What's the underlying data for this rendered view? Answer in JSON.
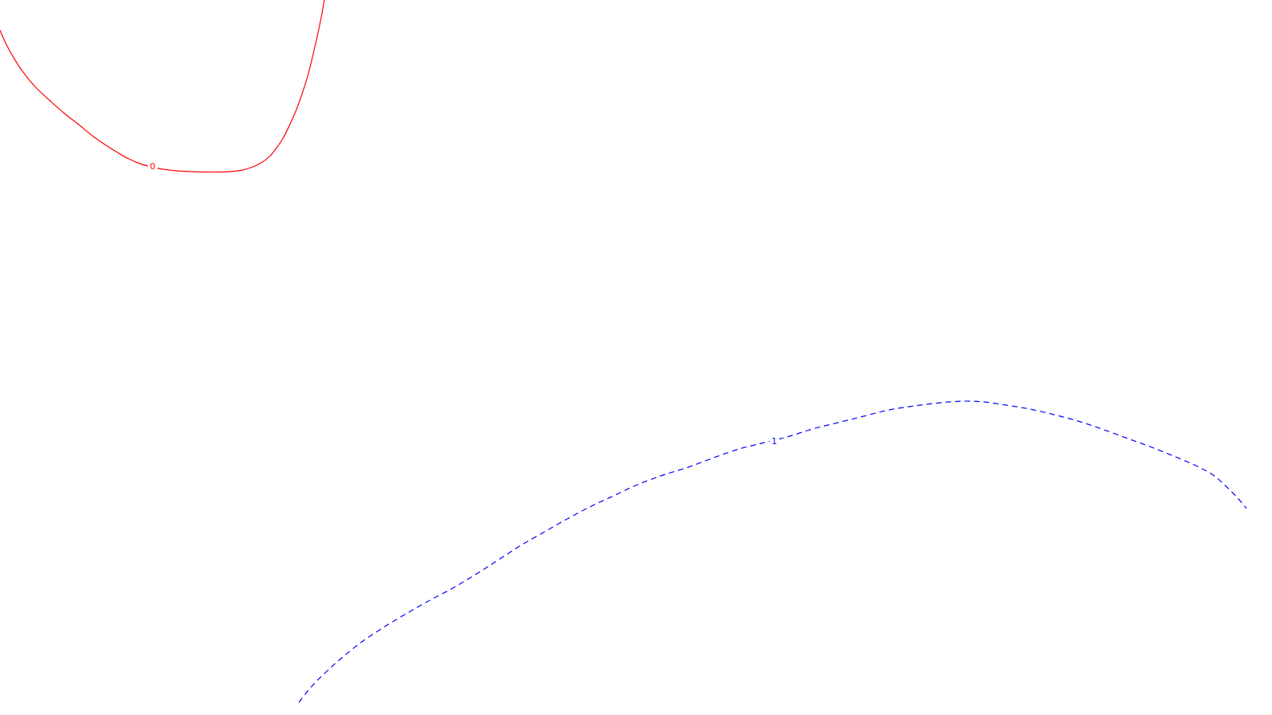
{
  "chart_data": {
    "type": "contour",
    "title": "",
    "xlabel": "",
    "ylabel": "",
    "grid": false,
    "legend": "none",
    "contours": [
      {
        "level": "0",
        "color": "#ff0000",
        "style": "solid",
        "points": [
          [
            0,
            38
          ],
          [
            8,
            56
          ],
          [
            18,
            74
          ],
          [
            30,
            92
          ],
          [
            45,
            110
          ],
          [
            62,
            126
          ],
          [
            80,
            142
          ],
          [
            98,
            156
          ],
          [
            115,
            170
          ],
          [
            132,
            182
          ],
          [
            148,
            192
          ],
          [
            162,
            200
          ],
          [
            176,
            206
          ],
          [
            190,
            210
          ],
          [
            205,
            213
          ],
          [
            222,
            215
          ],
          [
            240,
            216
          ],
          [
            258,
            216.5
          ],
          [
            275,
            216.5
          ],
          [
            290,
            216
          ],
          [
            305,
            214
          ],
          [
            318,
            210
          ],
          [
            330,
            204
          ],
          [
            340,
            196
          ],
          [
            348,
            186
          ],
          [
            356,
            174
          ],
          [
            364,
            158
          ],
          [
            372,
            140
          ],
          [
            380,
            118
          ],
          [
            387,
            96
          ],
          [
            393,
            72
          ],
          [
            399,
            46
          ],
          [
            404,
            22
          ],
          [
            408,
            0
          ]
        ],
        "label_at": [
          192,
          210
        ]
      },
      {
        "level": "1",
        "color": "#0000ff",
        "style": "dashed",
        "points": [
          [
            376,
            884
          ],
          [
            392,
            864
          ],
          [
            410,
            846
          ],
          [
            430,
            828
          ],
          [
            455,
            808
          ],
          [
            482,
            790
          ],
          [
            510,
            773
          ],
          [
            540,
            756
          ],
          [
            570,
            740
          ],
          [
            600,
            722
          ],
          [
            628,
            704
          ],
          [
            656,
            686
          ],
          [
            684,
            670
          ],
          [
            712,
            654
          ],
          [
            742,
            638
          ],
          [
            772,
            624
          ],
          [
            802,
            610
          ],
          [
            834,
            598
          ],
          [
            866,
            588
          ],
          [
            898,
            576
          ],
          [
            930,
            565
          ],
          [
            958,
            558
          ],
          [
            990,
            550
          ],
          [
            1022,
            540
          ],
          [
            1054,
            532
          ],
          [
            1086,
            524
          ],
          [
            1118,
            516
          ],
          [
            1150,
            511
          ],
          [
            1182,
            507
          ],
          [
            1212,
            505
          ],
          [
            1238,
            506
          ],
          [
            1266,
            510
          ],
          [
            1296,
            515
          ],
          [
            1326,
            522
          ],
          [
            1356,
            530
          ],
          [
            1386,
            540
          ],
          [
            1416,
            551
          ],
          [
            1446,
            562
          ],
          [
            1476,
            574
          ],
          [
            1504,
            586
          ],
          [
            1526,
            598
          ],
          [
            1542,
            612
          ],
          [
            1556,
            626
          ],
          [
            1568,
            640
          ]
        ],
        "label_at": [
          974,
          556
        ]
      }
    ]
  }
}
